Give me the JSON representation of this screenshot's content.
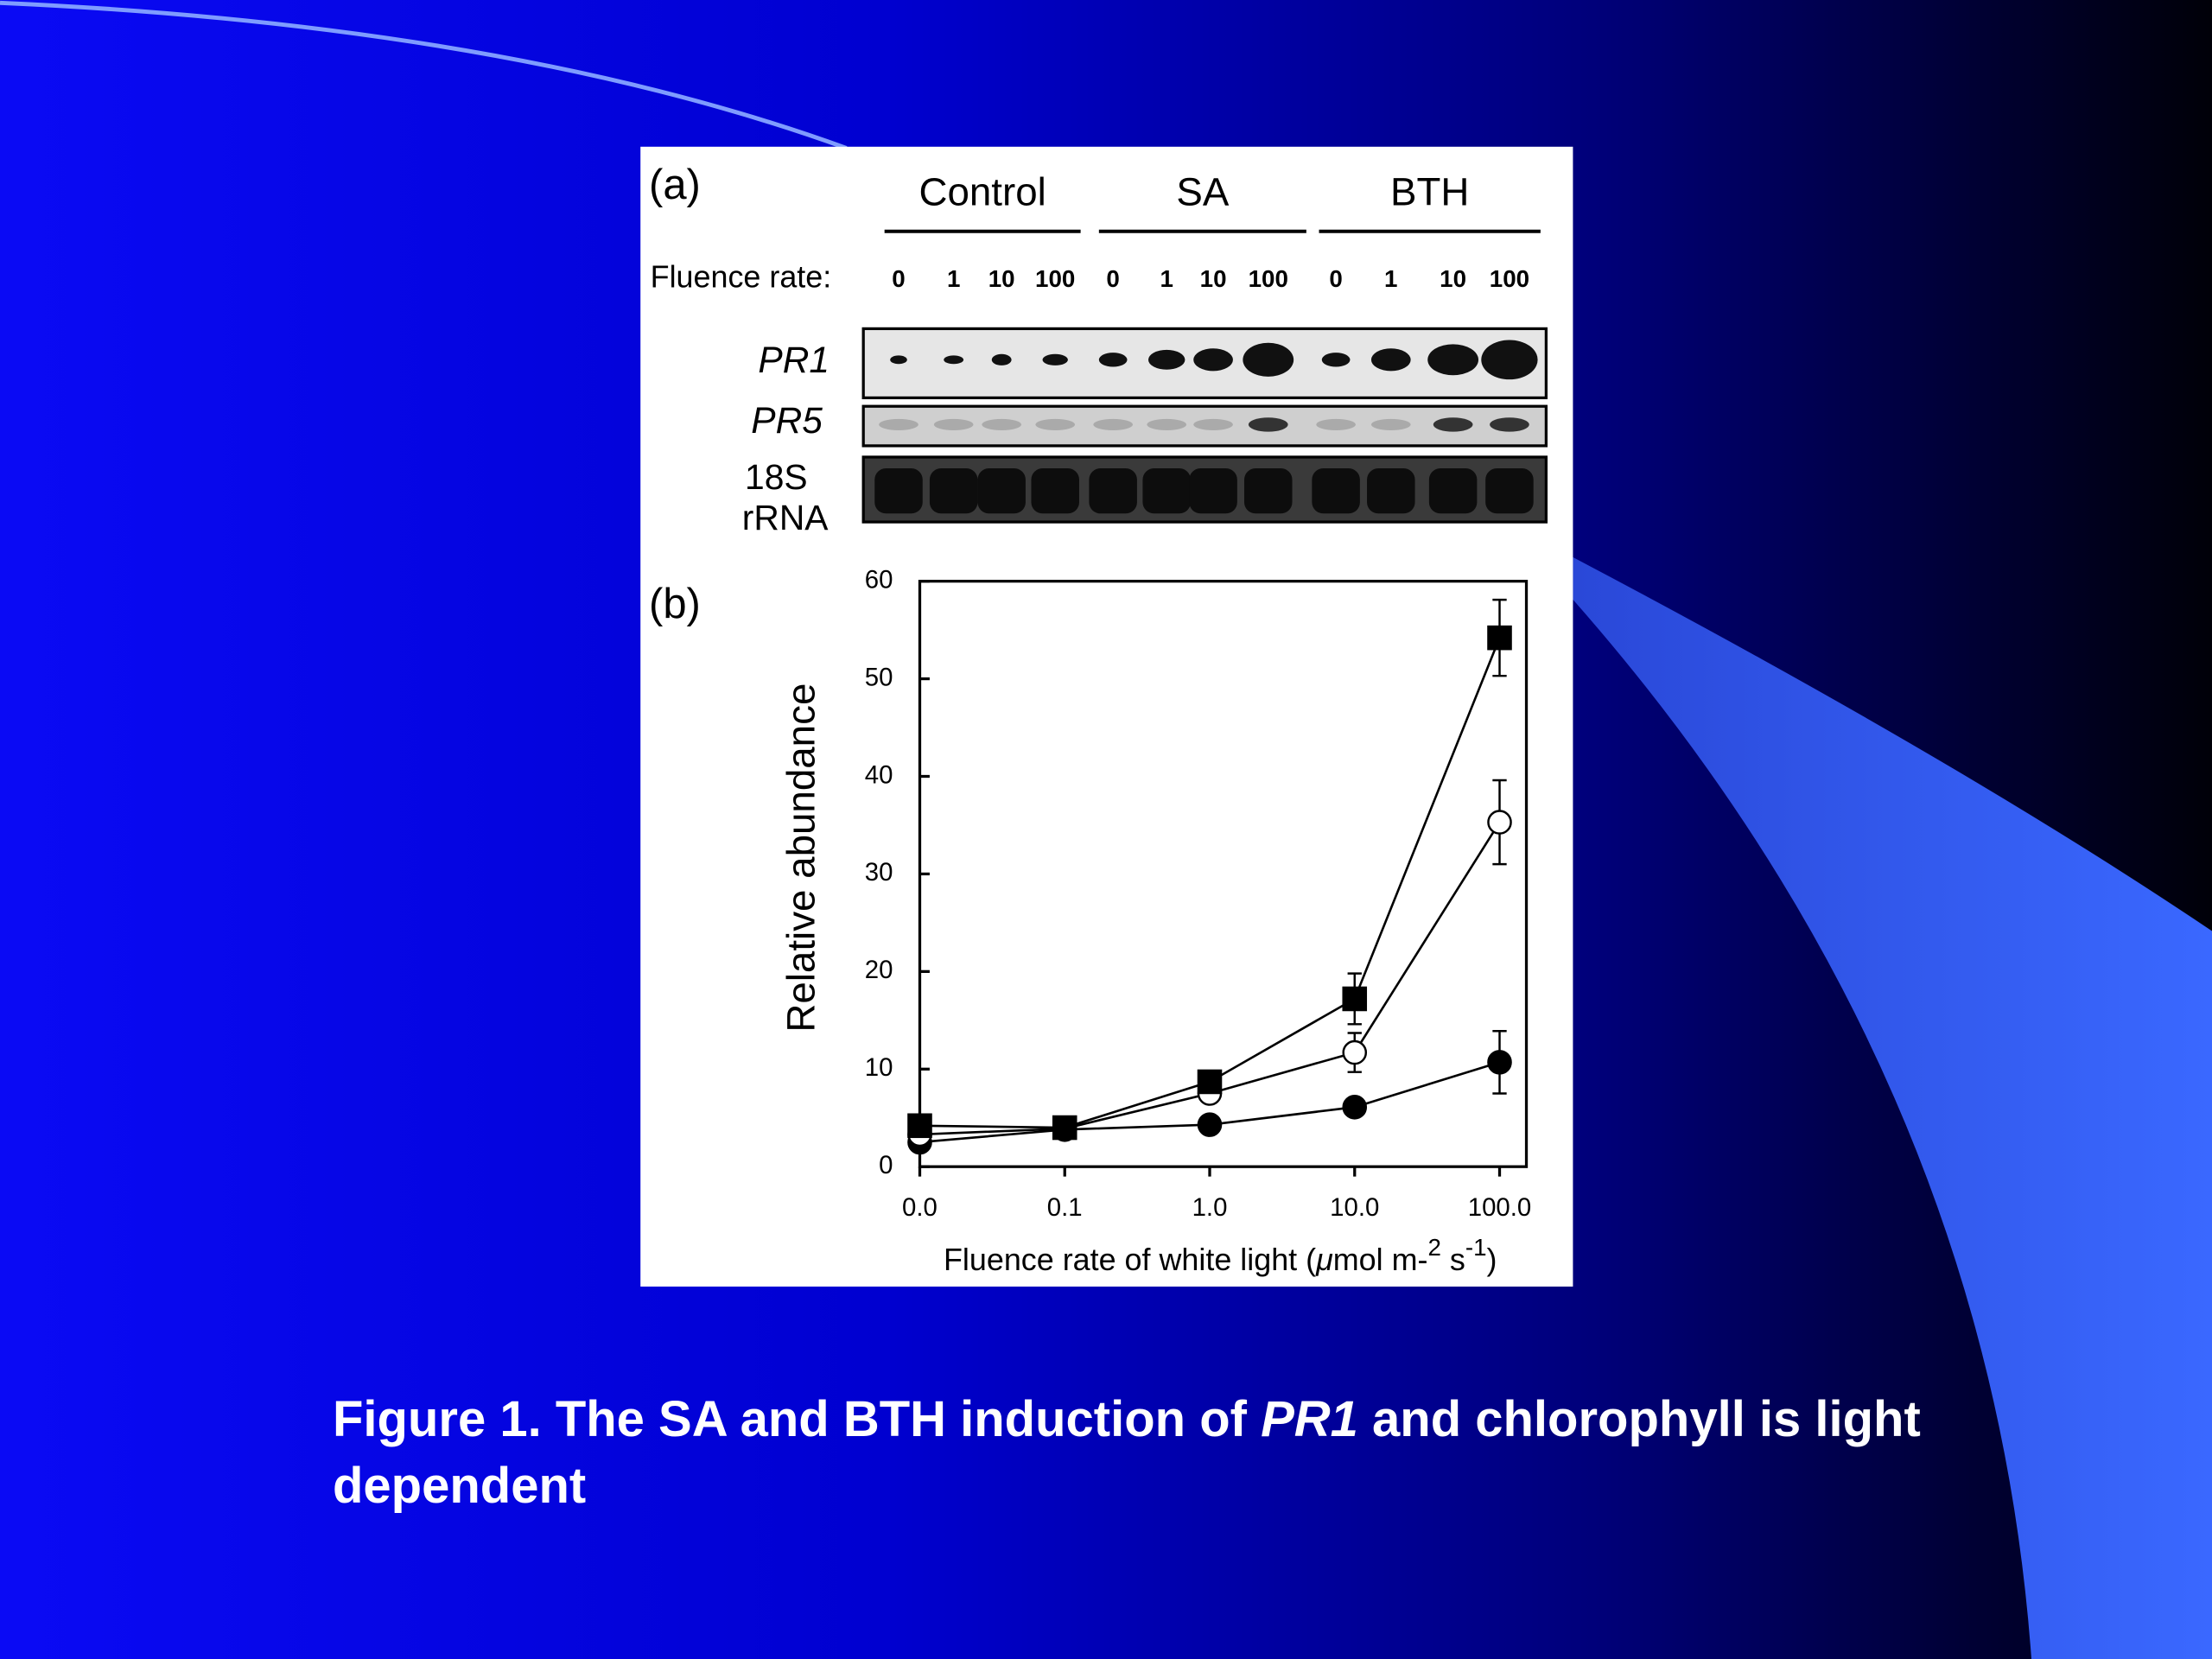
{
  "blot": {
    "panel_label": "(a)",
    "groups": [
      "Control",
      "SA",
      "BTH"
    ],
    "row_label": "Fluence rate:",
    "lanes": [
      "0",
      "1",
      "10",
      "100",
      "0",
      "1",
      "10",
      "100",
      "0",
      "1",
      "10",
      "100"
    ],
    "rows": [
      [
        "PR1"
      ],
      [
        "PR5"
      ],
      [
        "18S",
        "rRNA"
      ]
    ]
  },
  "chart_data": {
    "type": "line",
    "panel_label": "(b)",
    "ylabel": "Relative abundance",
    "xlabel": [
      "Fluence rate of white light (",
      "μ",
      "mol m-",
      "2",
      " s",
      "-1",
      ")"
    ],
    "categories": [
      "0.0",
      "0.1",
      "1.0",
      "10.0",
      "100.0"
    ],
    "ylim": [
      0,
      60
    ],
    "yticks": [
      0,
      10,
      20,
      30,
      40,
      50,
      60
    ],
    "series": [
      {
        "color": "#000000",
        "marker": "circle",
        "marker_fill": "#000000",
        "values": [
          2.5,
          3.8,
          4.3,
          6.1,
          10.7
        ],
        "errors": [
          null,
          null,
          null,
          null,
          3.2
        ]
      },
      {
        "color": "#000000",
        "marker": "circle",
        "marker_fill": "#ffffff",
        "values": [
          3.3,
          3.9,
          7.5,
          11.7,
          35.3
        ],
        "errors": [
          null,
          null,
          null,
          2,
          4.3
        ]
      },
      {
        "color": "#000000",
        "marker": "square",
        "marker_fill": "#000000",
        "values": [
          4.2,
          4,
          8.7,
          17.2,
          54.2
        ],
        "errors": [
          null,
          null,
          null,
          2.6,
          3.9
        ]
      }
    ]
  },
  "caption": {
    "before": "Figure 1. The SA and BTH induction of ",
    "gene": "PR1",
    "after": " and chlorophyll is light dependent"
  }
}
